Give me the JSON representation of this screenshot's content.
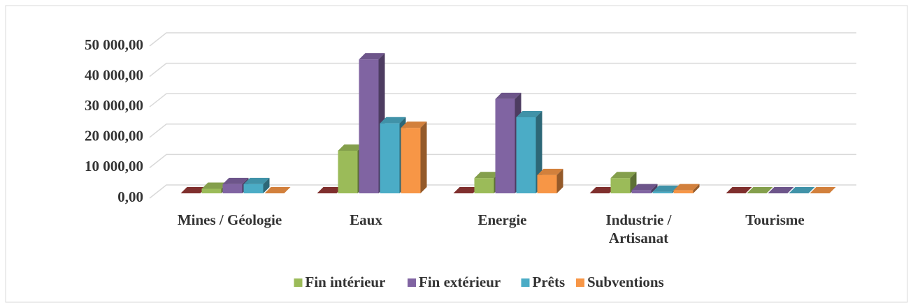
{
  "chart_data": {
    "type": "bar3d",
    "categories": [
      "Mines / Géologie",
      "Eaux",
      "Energie",
      "Industrie / Artisanat",
      "Tourisme"
    ],
    "series": [
      {
        "name": null,
        "color": "#953735",
        "values": [
          0,
          0,
          0,
          0,
          0
        ]
      },
      {
        "name": "Fin intérieur",
        "color": "#9bbb59",
        "values": [
          1500,
          14000,
          5000,
          5000,
          0
        ]
      },
      {
        "name": "Fin extérieur",
        "color": "#8064a2",
        "values": [
          3000,
          44000,
          31000,
          1000,
          0
        ]
      },
      {
        "name": "Prêts",
        "color": "#4bacc6",
        "values": [
          3000,
          23000,
          25000,
          500,
          0
        ]
      },
      {
        "name": "Subventions",
        "color": "#f79646",
        "values": [
          0,
          21500,
          6000,
          1000,
          0
        ]
      }
    ],
    "ylim": [
      0,
      50000
    ],
    "yticks": [
      {
        "value": 0,
        "label": "0,00"
      },
      {
        "value": 10000,
        "label": "10 000,00"
      },
      {
        "value": 20000,
        "label": "20 000,00"
      },
      {
        "value": 30000,
        "label": "30 000,00"
      },
      {
        "value": 40000,
        "label": "40 000,00"
      },
      {
        "value": 50000,
        "label": "50 000,00"
      }
    ],
    "grid": true,
    "legend": "bottom"
  }
}
